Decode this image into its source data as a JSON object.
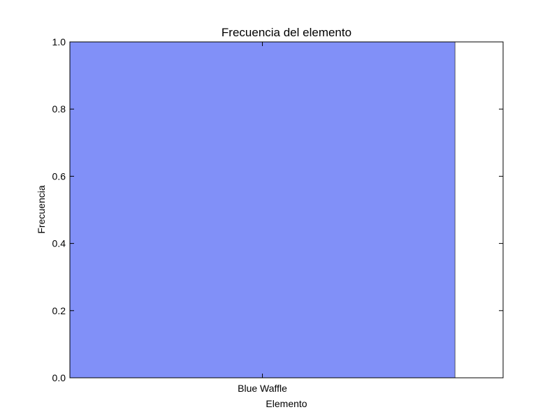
{
  "chart_data": {
    "type": "bar",
    "title": "Frecuencia del elemento",
    "xlabel": "Elemento",
    "ylabel": "Frecuencia",
    "categories": [
      "Blue Waffle"
    ],
    "values": [
      1.0
    ],
    "ylim": [
      0,
      1.0
    ],
    "yticks": [
      "0.0",
      "0.2",
      "0.4",
      "0.6",
      "0.8",
      "1.0"
    ],
    "bar_color": "#8190f8",
    "grid": false,
    "legend": "none"
  }
}
